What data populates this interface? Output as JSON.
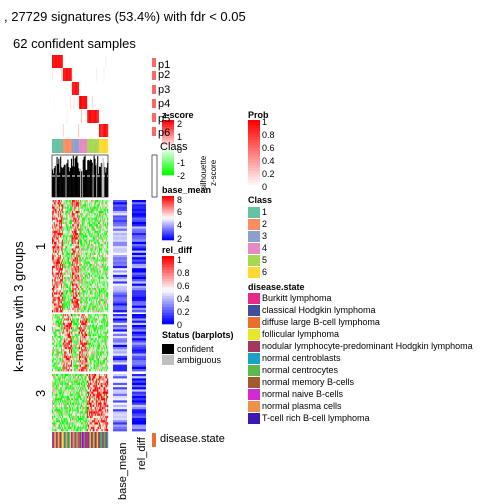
{
  "title": ", 27729 signatures (53.4%) with fdr < 0.05",
  "subtitle": "62 confident samples",
  "row_title": "k-means with 3 groups",
  "row_groups": [
    "1",
    "2",
    "3"
  ],
  "bottom_labels": {
    "base_mean": "base_mean",
    "rel_diff": "rel_diff",
    "disease_state": "disease.state"
  },
  "side_labels": [
    "p1",
    "p2",
    "p3",
    "p4",
    "p5",
    "p6",
    "Class",
    "silhouette",
    "z-score"
  ],
  "legends": {
    "zscore": {
      "title": "z-score",
      "ticks": [
        "2",
        "1",
        "0",
        "-1",
        "-2"
      ]
    },
    "base_mean": {
      "title": "base_mean",
      "ticks": [
        "8",
        "6",
        "4",
        "2"
      ]
    },
    "rel_diff": {
      "title": "rel_diff",
      "ticks": [
        "1",
        "0.8",
        "0.6",
        "0.4",
        "0.2",
        "0"
      ]
    },
    "status": {
      "title": "Status (barplots)",
      "items": [
        {
          "label": "confident",
          "color": "#000000"
        },
        {
          "label": "ambiguous",
          "color": "#BEBEBE"
        }
      ]
    },
    "prob": {
      "title": "Prob",
      "ticks": [
        "1",
        "0.8",
        "0.6",
        "0.4",
        "0.2",
        "0"
      ]
    },
    "class": {
      "title": "Class",
      "items": [
        {
          "label": "1",
          "color": "#66C2A5"
        },
        {
          "label": "2",
          "color": "#FC8D62"
        },
        {
          "label": "3",
          "color": "#8DA0CB"
        },
        {
          "label": "4",
          "color": "#E78AC3"
        },
        {
          "label": "5",
          "color": "#A6D854"
        },
        {
          "label": "6",
          "color": "#FFD92F"
        }
      ]
    },
    "disease_state": {
      "title": "disease.state",
      "items": [
        {
          "label": "Burkitt lymphoma",
          "color": "#E7298A"
        },
        {
          "label": "classical Hodgkin lymphoma",
          "color": "#3F4FA0"
        },
        {
          "label": "diffuse large B-cell lymphoma",
          "color": "#E8702A"
        },
        {
          "label": "follicular lymphoma",
          "color": "#E6E62A"
        },
        {
          "label": "nodular lymphocyte-predominant Hodgkin lymphoma",
          "color": "#A6365E"
        },
        {
          "label": "normal centroblasts",
          "color": "#1AA3C8"
        },
        {
          "label": "normal centrocytes",
          "color": "#5DB84E"
        },
        {
          "label": "normal memory B-cells",
          "color": "#A05A2C"
        },
        {
          "label": "normal naive B-cells",
          "color": "#D42AD4"
        },
        {
          "label": "normal plasma cells",
          "color": "#F0914A"
        },
        {
          "label": "T-cell rich B-cell lymphoma",
          "color": "#3A1AB0"
        }
      ]
    }
  },
  "colors": {
    "zscore_high": "#FF0000",
    "zscore_mid": "#FFFFFF",
    "zscore_low": "#00FF00",
    "base_mean_high": "#FF0000",
    "base_mean_mid": "#FFFFFF",
    "base_mean_low": "#0000FF",
    "rel_diff_high": "#FF0000",
    "rel_diff_mid": "#FFFFFF",
    "rel_diff_low": "#0000FF",
    "prob_high": "#FF0000",
    "prob_low": "#FFFFFF"
  },
  "chart_data": {
    "type": "heatmap",
    "title": ", 27729 signatures (53.4%) with fdr < 0.05",
    "n_signatures": 27729,
    "percent_significant": 53.4,
    "fdr_cutoff": 0.05,
    "n_confident_samples": 62,
    "k": 3,
    "row_groups": [
      "1",
      "2",
      "3"
    ],
    "membership_rows": [
      "p1",
      "p2",
      "p3",
      "p4",
      "p5",
      "p6"
    ],
    "zscore_range": [
      -2,
      2
    ],
    "base_mean_range": [
      2,
      8
    ],
    "rel_diff_range": [
      0,
      1
    ],
    "prob_range": [
      0,
      1
    ]
  }
}
